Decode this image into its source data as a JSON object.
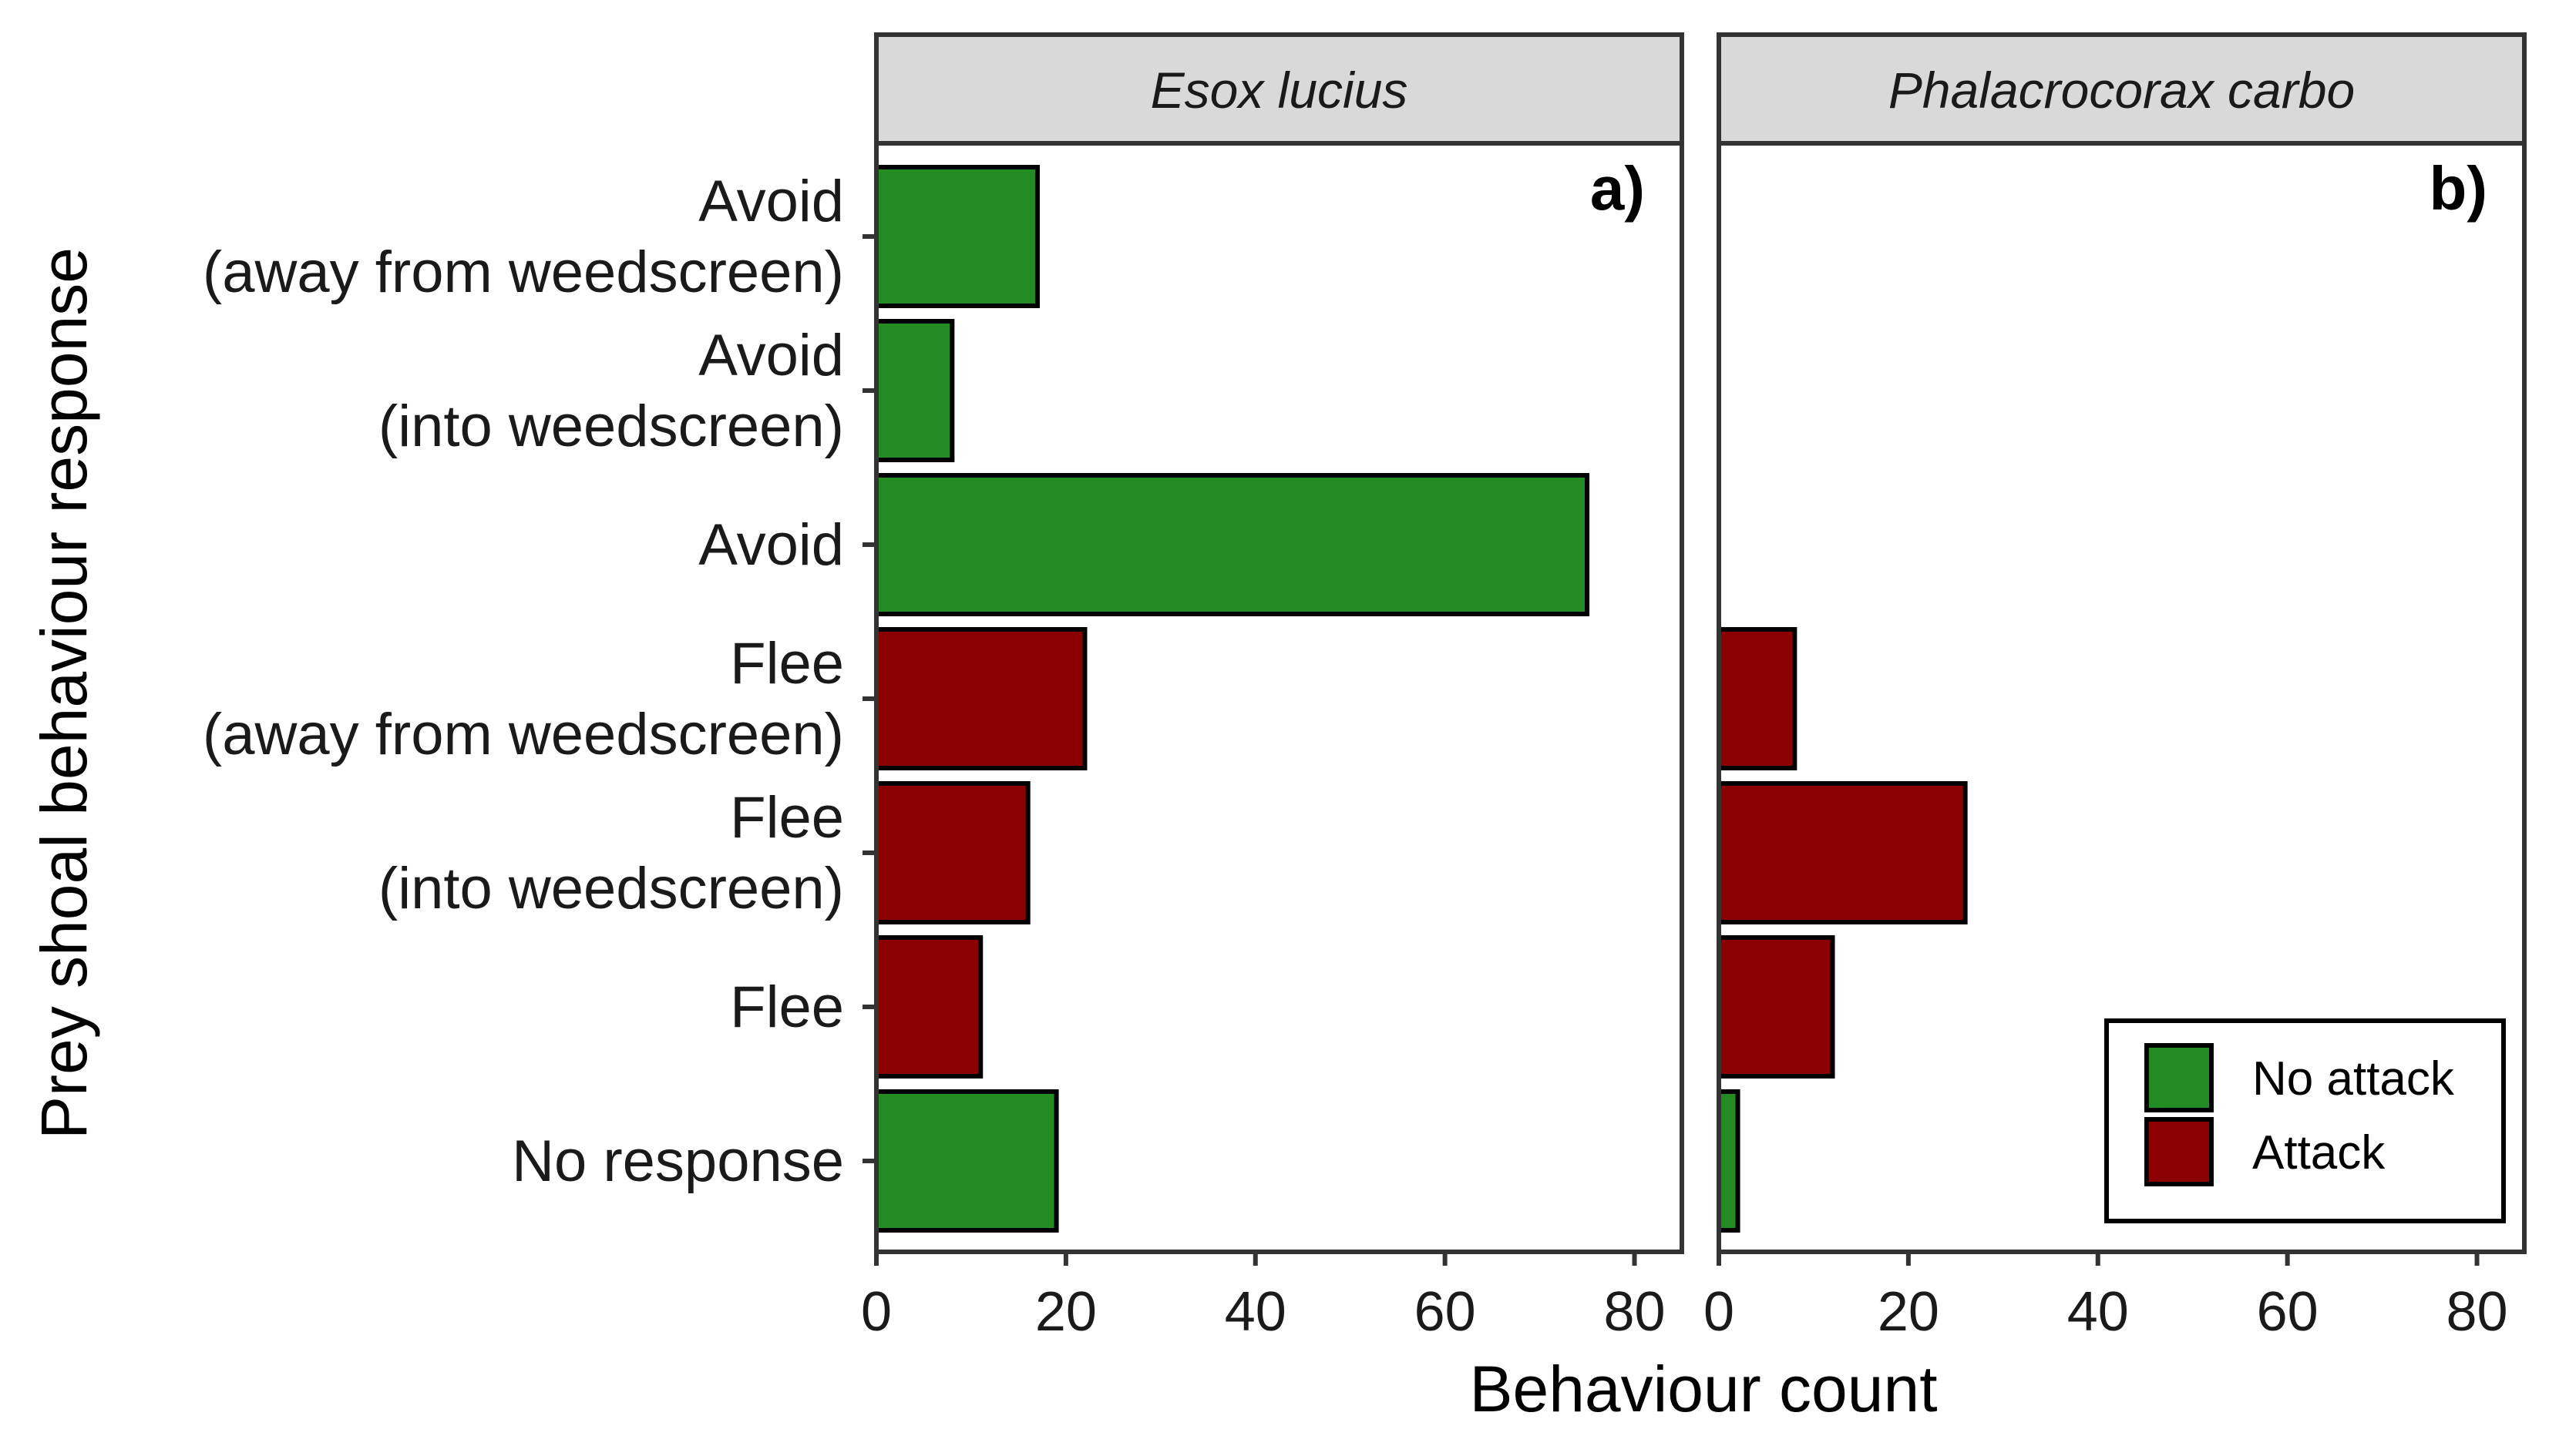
{
  "chart_data": {
    "type": "bar",
    "orientation": "horizontal",
    "xlabel": "Behaviour count",
    "ylabel": "Prey shoal behaviour response",
    "xlim": [
      0,
      85
    ],
    "xticks": [
      0,
      20,
      40,
      60,
      80
    ],
    "grid": false,
    "legend_position": "bottom-right",
    "categories": [
      [
        "Avoid",
        "(away from weedscreen)"
      ],
      [
        "Avoid",
        "(into weedscreen)"
      ],
      [
        "Avoid"
      ],
      [
        "Flee",
        "(away from weedscreen)"
      ],
      [
        "Flee",
        "(into weedscreen)"
      ],
      [
        "Flee"
      ],
      [
        "No response"
      ]
    ],
    "bar_series": [
      "No attack",
      "No attack",
      "No attack",
      "Attack",
      "Attack",
      "Attack",
      "No attack"
    ],
    "panels": [
      {
        "facet_label": "Esox lucius",
        "tag": "a)",
        "values": [
          17,
          8,
          75,
          22,
          16,
          11,
          19
        ]
      },
      {
        "facet_label": "Phalacrocorax carbo",
        "tag": "b)",
        "values": [
          0,
          0,
          0,
          8,
          26,
          12,
          2
        ]
      }
    ],
    "legend": [
      {
        "name": "No attack",
        "color": "#228B22"
      },
      {
        "name": "Attack",
        "color": "#8B0000"
      }
    ]
  }
}
